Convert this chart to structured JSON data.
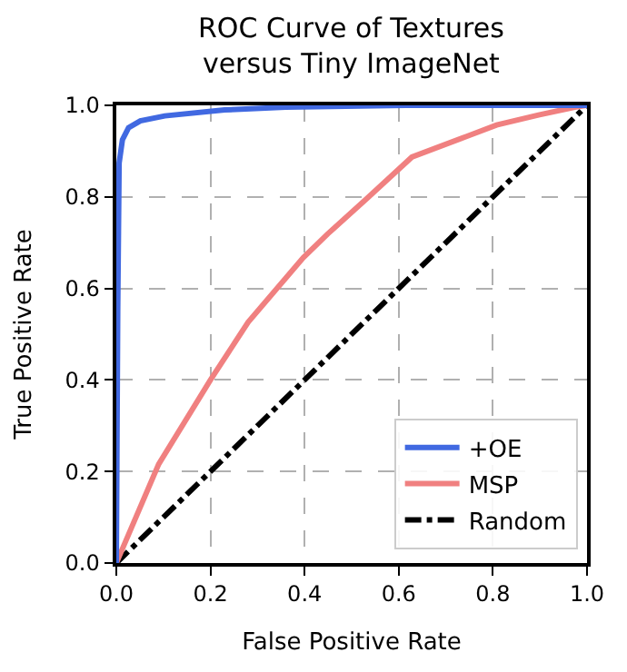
{
  "chart_data": {
    "type": "line",
    "title": "ROC Curve of Textures\nversus Tiny ImageNet",
    "xlabel": "False Positive Rate",
    "ylabel": "True Positive Rate",
    "xlim": [
      0,
      1
    ],
    "ylim": [
      0,
      1
    ],
    "xticks": [
      {
        "value": 0,
        "label": "0.0"
      },
      0.2,
      0.4,
      0.6,
      0.8,
      {
        "value": 1,
        "label": "1.0"
      }
    ],
    "yticks": [
      {
        "value": 0,
        "label": "0.0"
      },
      0.2,
      0.4,
      0.6,
      0.8,
      {
        "value": 1,
        "label": "1.0"
      }
    ],
    "grid": true,
    "legend": "bottom right",
    "series": [
      {
        "name": "+OE",
        "color": "#4169e1",
        "line_style": "solid",
        "x": [
          0,
          0.003,
          0.006,
          0.013,
          0.026,
          0.051,
          0.103,
          0.23,
          0.36,
          0.615,
          1
        ],
        "values": [
          0,
          0.55,
          0.874,
          0.925,
          0.951,
          0.966,
          0.977,
          0.99,
          0.996,
          1,
          1
        ]
      },
      {
        "name": "MSP",
        "color": "#f08080",
        "line_style": "solid",
        "x": [
          0,
          0.09,
          0.2,
          0.28,
          0.397,
          0.449,
          0.532,
          0.628,
          0.744,
          0.808,
          0.897,
          0.974,
          1
        ],
        "values": [
          0,
          0.216,
          0.4,
          0.526,
          0.667,
          0.719,
          0.796,
          0.887,
          0.932,
          0.957,
          0.979,
          0.996,
          1
        ]
      },
      {
        "name": "Random",
        "color": "#000000",
        "line_style": "dashdot",
        "x": [
          0,
          1
        ],
        "values": [
          0,
          1
        ]
      }
    ]
  }
}
